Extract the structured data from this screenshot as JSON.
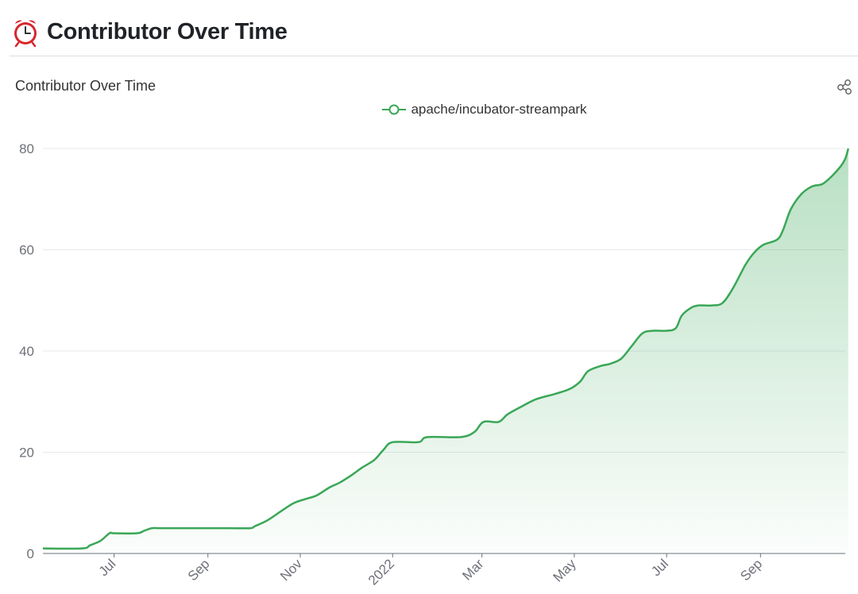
{
  "page": {
    "title": "Contributor Over Time",
    "title_icon": "alarm-clock-icon"
  },
  "chart_data": {
    "type": "area",
    "title": "Contributor Over Time",
    "xlabel": "",
    "ylabel": "",
    "ylim": [
      0,
      80
    ],
    "yticks": [
      0,
      20,
      40,
      60,
      80
    ],
    "xlim": [
      "2021-05-15",
      "2022-10-27"
    ],
    "xticks": [
      {
        "date": "2021-07-01",
        "label": "Jul"
      },
      {
        "date": "2021-09-01",
        "label": "Sep"
      },
      {
        "date": "2021-11-01",
        "label": "Nov"
      },
      {
        "date": "2022-01-01",
        "label": "2022"
      },
      {
        "date": "2022-03-01",
        "label": "Mar"
      },
      {
        "date": "2022-05-01",
        "label": "May"
      },
      {
        "date": "2022-07-01",
        "label": "Jul"
      },
      {
        "date": "2022-09-01",
        "label": "Sep"
      }
    ],
    "grid": true,
    "legend_position": "top-center",
    "series": [
      {
        "name": "apache/incubator-streampark",
        "color": "#3aa757",
        "points": [
          [
            "2021-05-15",
            1
          ],
          [
            "2021-06-10",
            1
          ],
          [
            "2021-06-15",
            1.6
          ],
          [
            "2021-06-22",
            2.5
          ],
          [
            "2021-06-28",
            4
          ],
          [
            "2021-07-01",
            4
          ],
          [
            "2021-07-16",
            4
          ],
          [
            "2021-07-21",
            4.5
          ],
          [
            "2021-07-26",
            5
          ],
          [
            "2021-08-01",
            5
          ],
          [
            "2021-08-15",
            5
          ],
          [
            "2021-09-01",
            5
          ],
          [
            "2021-09-15",
            5
          ],
          [
            "2021-09-29",
            5
          ],
          [
            "2021-10-02",
            5.4
          ],
          [
            "2021-10-10",
            6.5
          ],
          [
            "2021-10-20",
            8.5
          ],
          [
            "2021-10-28",
            10
          ],
          [
            "2021-11-05",
            10.8
          ],
          [
            "2021-11-12",
            11.5
          ],
          [
            "2021-11-20",
            13
          ],
          [
            "2021-11-27",
            14
          ],
          [
            "2021-12-05",
            15.5
          ],
          [
            "2021-12-12",
            17
          ],
          [
            "2021-12-20",
            18.5
          ],
          [
            "2021-12-26",
            20.5
          ],
          [
            "2022-01-01",
            22
          ],
          [
            "2022-01-18",
            22
          ],
          [
            "2022-01-24",
            23
          ],
          [
            "2022-02-15",
            23
          ],
          [
            "2022-02-24",
            24
          ],
          [
            "2022-03-02",
            26
          ],
          [
            "2022-03-12",
            26
          ],
          [
            "2022-03-18",
            27.5
          ],
          [
            "2022-03-27",
            29
          ],
          [
            "2022-04-06",
            30.5
          ],
          [
            "2022-04-18",
            31.5
          ],
          [
            "2022-04-28",
            32.5
          ],
          [
            "2022-05-05",
            34
          ],
          [
            "2022-05-10",
            36
          ],
          [
            "2022-05-18",
            37
          ],
          [
            "2022-05-25",
            37.5
          ],
          [
            "2022-06-01",
            38.5
          ],
          [
            "2022-06-08",
            41
          ],
          [
            "2022-06-15",
            43.5
          ],
          [
            "2022-06-22",
            44
          ],
          [
            "2022-07-01",
            44
          ],
          [
            "2022-07-07",
            44.5
          ],
          [
            "2022-07-11",
            47
          ],
          [
            "2022-07-17",
            48.5
          ],
          [
            "2022-07-22",
            49
          ],
          [
            "2022-07-31",
            49
          ],
          [
            "2022-08-07",
            49.5
          ],
          [
            "2022-08-14",
            52.5
          ],
          [
            "2022-08-22",
            57
          ],
          [
            "2022-08-28",
            59.5
          ],
          [
            "2022-09-03",
            61
          ],
          [
            "2022-09-12",
            62
          ],
          [
            "2022-09-16",
            64
          ],
          [
            "2022-09-21",
            68
          ],
          [
            "2022-09-28",
            71
          ],
          [
            "2022-10-05",
            72.5
          ],
          [
            "2022-10-12",
            73
          ],
          [
            "2022-10-18",
            74.5
          ],
          [
            "2022-10-24",
            76.5
          ],
          [
            "2022-10-27",
            78
          ],
          [
            "2022-10-29",
            80
          ]
        ]
      }
    ]
  }
}
